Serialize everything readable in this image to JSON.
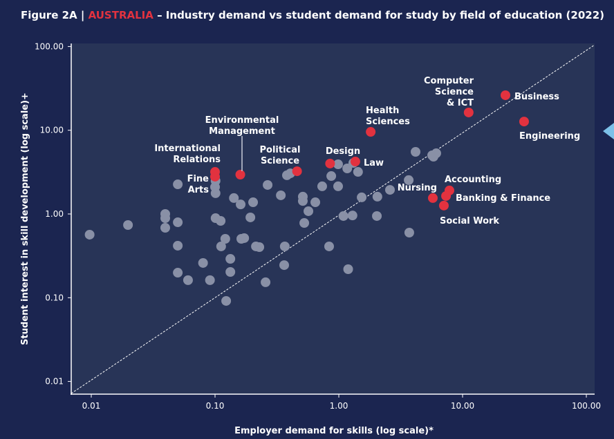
{
  "title": {
    "prefix": "Figure 2A | ",
    "country": "AUSTRALIA",
    "rest": " – Industry demand vs student demand for study by field of education (2022)"
  },
  "colors": {
    "background": "#1b2550",
    "plot": "#283457",
    "grey": "#8990a6",
    "red": "#e2323f",
    "marker": "#7cc0e8"
  },
  "chart_data": {
    "type": "scatter",
    "title": "Industry demand vs student demand for study by field of education (2022)",
    "xlabel": "Employer demand for skills (log scale)*",
    "ylabel": "Student interest in skill development (log scale)+",
    "xscale": "log",
    "yscale": "log",
    "xlim": [
      0.0068,
      117
    ],
    "ylim": [
      0.0071,
      100
    ],
    "xticks": [
      "0.01",
      "0.10",
      "1.00",
      "10.00",
      "100.00"
    ],
    "xtick_values": [
      0.01,
      0.1,
      1,
      10,
      100
    ],
    "yticks": [
      "100.00",
      "10.00",
      "1.00",
      "0.10",
      "0.01"
    ],
    "ytick_values": [
      100,
      10,
      1,
      0.1,
      0.01
    ],
    "reference_line": "y = x (dashed)",
    "highlighted": [
      {
        "name": "International Relations",
        "lines": [
          "International",
          "Relations"
        ],
        "x": 0.1,
        "y": 3.18
      },
      {
        "name": "Fine Arts",
        "lines": [
          "Fine",
          "Arts"
        ],
        "x": 0.1,
        "y": 2.79
      },
      {
        "name": "Environmental Management",
        "lines": [
          "Environmental",
          "Management"
        ],
        "x": 0.16,
        "y": 2.95
      },
      {
        "name": "Political Science",
        "lines": [
          "Political",
          "Science"
        ],
        "x": 0.46,
        "y": 3.24
      },
      {
        "name": "Design",
        "lines": [
          "Design"
        ],
        "x": 0.85,
        "y": 4.0
      },
      {
        "name": "Law",
        "lines": [
          "Law"
        ],
        "x": 1.36,
        "y": 4.23
      },
      {
        "name": "Health Sciences",
        "lines": [
          "Health",
          "Sciences"
        ],
        "x": 1.81,
        "y": 9.57
      },
      {
        "name": "Computer Science & ICT",
        "lines": [
          "Computer",
          "Science",
          "& ICT"
        ],
        "x": 11.2,
        "y": 16.3
      },
      {
        "name": "Business",
        "lines": [
          "Business"
        ],
        "x": 22.2,
        "y": 26.2
      },
      {
        "name": "Engineering",
        "lines": [
          "Engineering"
        ],
        "x": 31.4,
        "y": 12.7
      },
      {
        "name": "Accounting",
        "lines": [
          "Accounting"
        ],
        "x": 7.83,
        "y": 1.91
      },
      {
        "name": "Banking & Finance",
        "lines": [
          "Banking & Finance"
        ],
        "x": 7.35,
        "y": 1.64
      },
      {
        "name": "Nursing",
        "lines": [
          "Nursing"
        ],
        "x": 5.75,
        "y": 1.55
      },
      {
        "name": "Social Work",
        "lines": [
          "Social Work"
        ],
        "x": 7.06,
        "y": 1.26
      }
    ],
    "other_points": [
      [
        0.0097,
        0.566
      ],
      [
        0.0198,
        0.738
      ],
      [
        0.0396,
        1.0
      ],
      [
        0.0396,
        0.892
      ],
      [
        0.0396,
        0.684
      ],
      [
        0.05,
        2.26
      ],
      [
        0.05,
        0.796
      ],
      [
        0.05,
        0.418
      ],
      [
        0.05,
        0.199
      ],
      [
        0.0605,
        0.162
      ],
      [
        0.08,
        0.26
      ],
      [
        0.091,
        0.162
      ],
      [
        0.1,
        2.1
      ],
      [
        0.101,
        2.49
      ],
      [
        0.101,
        1.77
      ],
      [
        0.101,
        0.892
      ],
      [
        0.111,
        0.827
      ],
      [
        0.112,
        0.41
      ],
      [
        0.121,
        0.505
      ],
      [
        0.133,
        0.291
      ],
      [
        0.133,
        0.203
      ],
      [
        0.123,
        0.0915
      ],
      [
        0.142,
        1.55
      ],
      [
        0.161,
        1.3
      ],
      [
        0.163,
        0.505
      ],
      [
        0.172,
        0.515
      ],
      [
        0.193,
        0.91
      ],
      [
        0.203,
        1.38
      ],
      [
        0.214,
        0.41
      ],
      [
        0.228,
        0.402
      ],
      [
        0.256,
        0.153
      ],
      [
        0.266,
        2.22
      ],
      [
        0.34,
        1.67
      ],
      [
        0.362,
        0.245
      ],
      [
        0.366,
        0.41
      ],
      [
        0.381,
        2.9
      ],
      [
        0.406,
        3.06
      ],
      [
        0.512,
        1.61
      ],
      [
        0.512,
        1.43
      ],
      [
        0.568,
        1.08
      ],
      [
        0.526,
        0.781
      ],
      [
        0.646,
        1.38
      ],
      [
        0.835,
        0.41
      ],
      [
        0.869,
        2.84
      ],
      [
        0.987,
        3.92
      ],
      [
        0.734,
        2.14
      ],
      [
        0.987,
        2.14
      ],
      [
        1.09,
        0.945
      ],
      [
        1.17,
        3.5
      ],
      [
        1.19,
        0.219
      ],
      [
        1.29,
        0.96
      ],
      [
        1.31,
        4.07
      ],
      [
        1.43,
        3.18
      ],
      [
        1.53,
        1.58
      ],
      [
        2.05,
        1.61
      ],
      [
        2.03,
        0.945
      ],
      [
        2.59,
        1.94
      ],
      [
        3.67,
        2.54
      ],
      [
        3.71,
        0.599
      ],
      [
        4.17,
        5.52
      ],
      [
        5.68,
        5.02
      ],
      [
        5.82,
        4.83
      ],
      [
        6.13,
        5.31
      ]
    ]
  }
}
